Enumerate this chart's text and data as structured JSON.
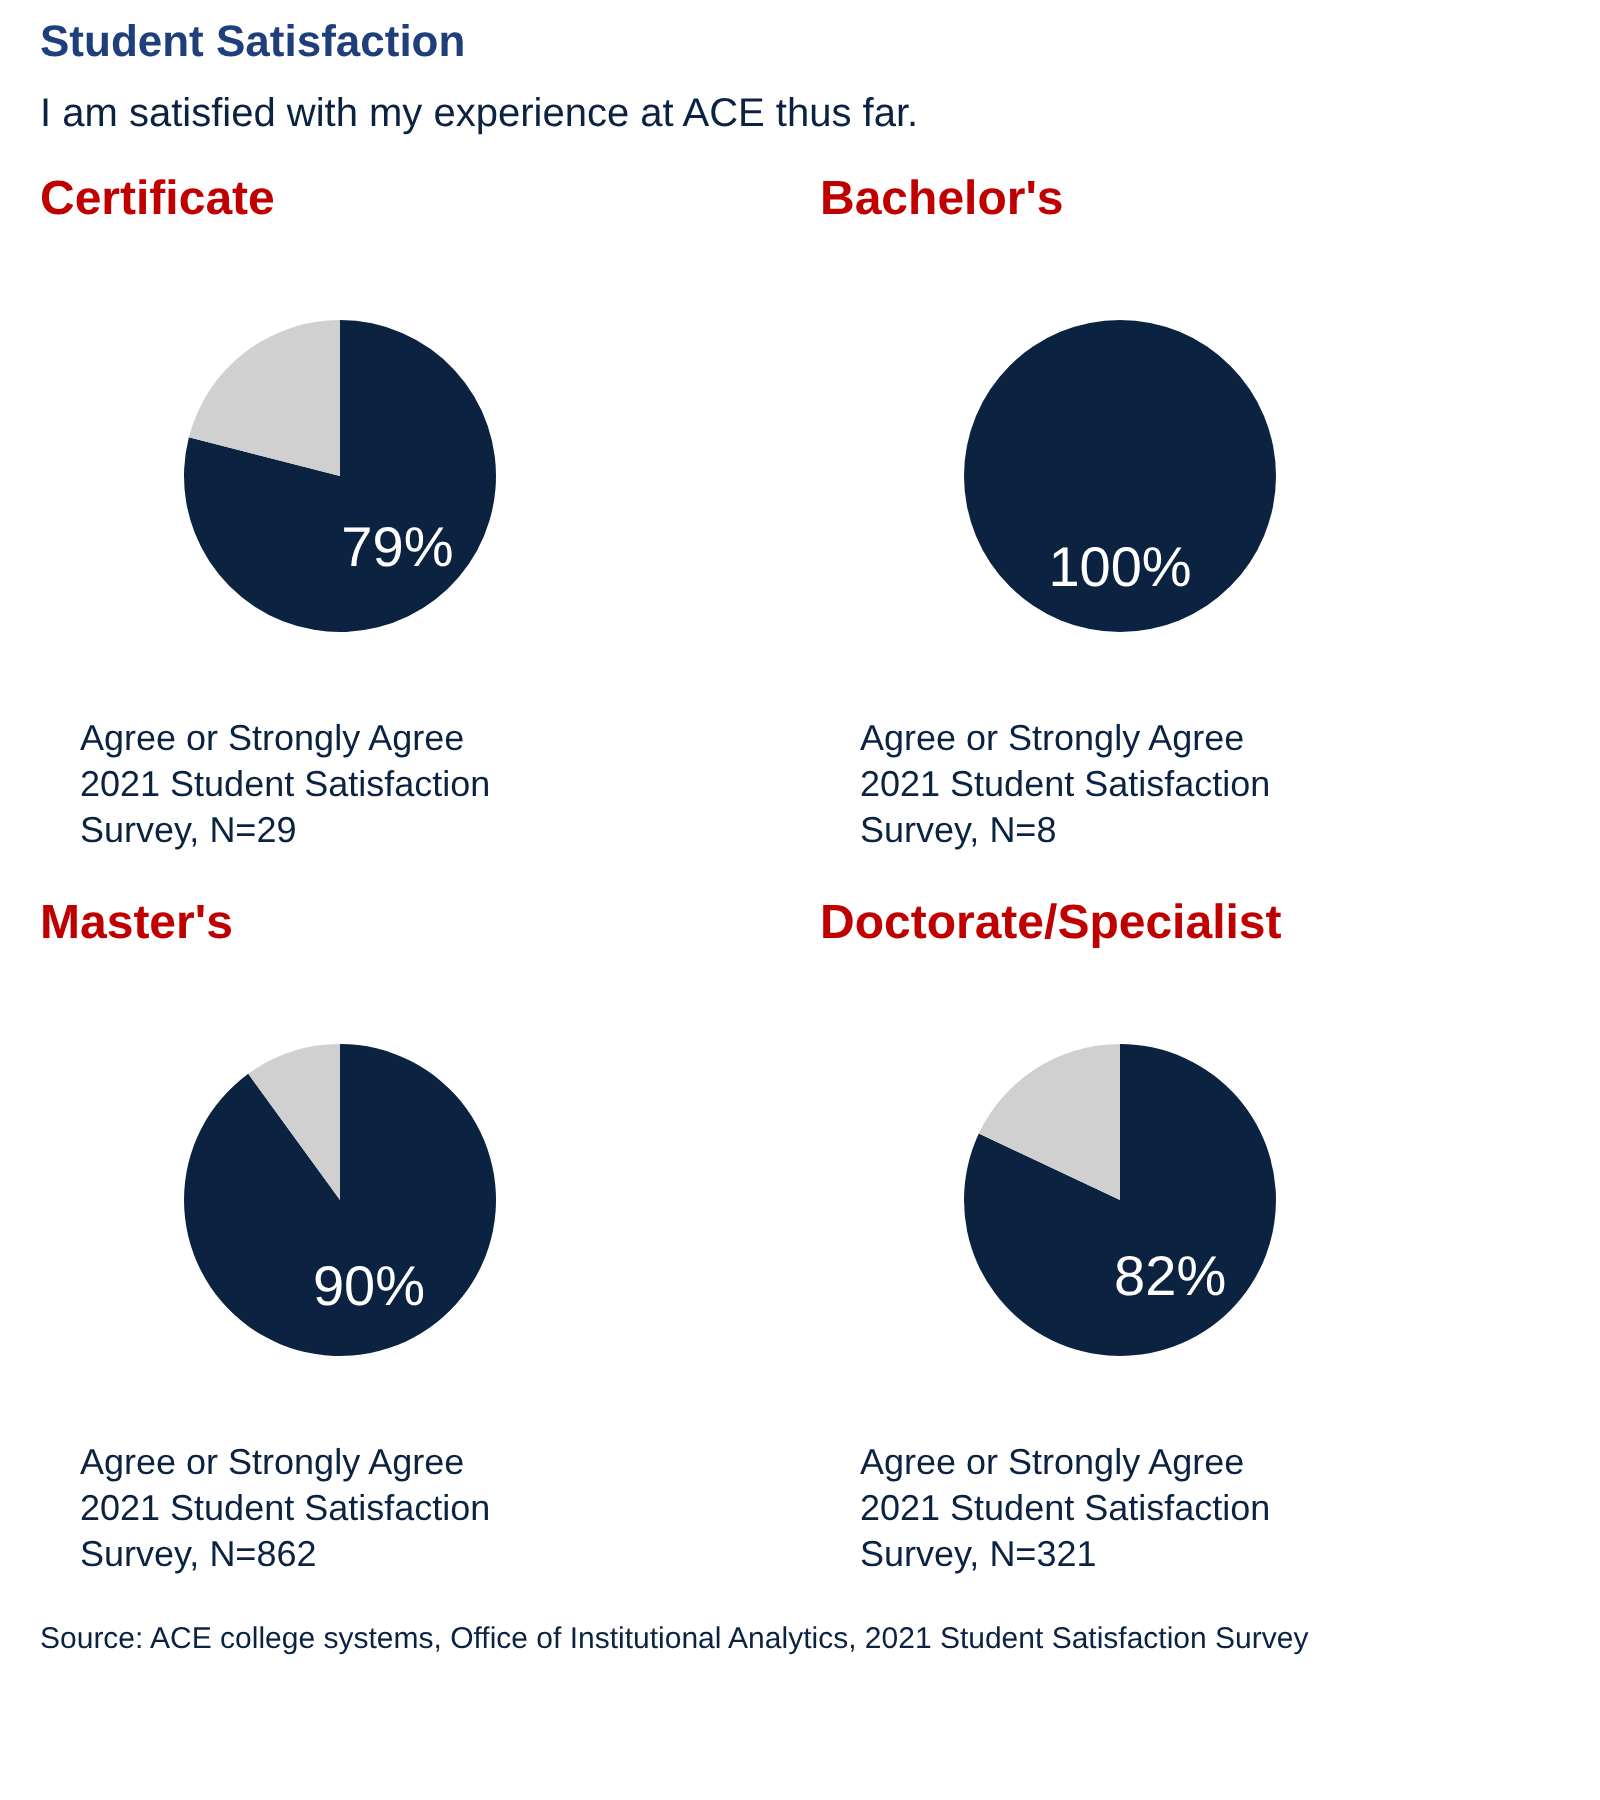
{
  "chart_data": [
    {
      "type": "pie",
      "title": "Certificate",
      "subtitle": "I am satisfied with my experience at ACE thus far.",
      "categories": [
        null,
        null
      ],
      "values": [
        79,
        21
      ],
      "colors": [
        "#0b2341",
        "#d0d0d0"
      ],
      "value_labels": [
        "79%",
        null
      ],
      "annotations": [
        "Agree or Strongly Agree",
        "2021 Student Satisfaction",
        "Survey, N=29",
        "Student Satisfaction"
      ]
    },
    {
      "type": "pie",
      "title": "Bachelor's",
      "categories": [
        null
      ],
      "values": [
        100
      ],
      "colors": [
        "#0b2341"
      ],
      "value_labels": [
        "100%"
      ],
      "annotations": [
        "Agree or Strongly Agree",
        "2021 Student Satisfaction",
        "Survey, N=8"
      ]
    },
    {
      "type": "pie",
      "title": "Master's",
      "categories": [
        null,
        null
      ],
      "values": [
        90,
        10
      ],
      "colors": [
        "#0b2341",
        "#d0d0d0"
      ],
      "value_labels": [
        "90%",
        null
      ],
      "annotations": [
        "Agree or Strongly Agree",
        "2021 Student Satisfaction",
        "Survey, N=862"
      ]
    },
    {
      "type": "pie",
      "title": "Doctorate/Specialist",
      "categories": [
        null,
        null
      ],
      "values": [
        82,
        18
      ],
      "colors": [
        "#0b2341",
        "#d0d0d0"
      ],
      "value_labels": [
        "82%",
        null
      ],
      "annotations": [
        "Agree or Strongly Agree",
        "2021 Student Satisfaction",
        "Survey, N=321",
        "Source: ACE college systems, Office of Institutional Analytics, 2021 Student Satisfaction Survey"
      ]
    }
  ]
}
